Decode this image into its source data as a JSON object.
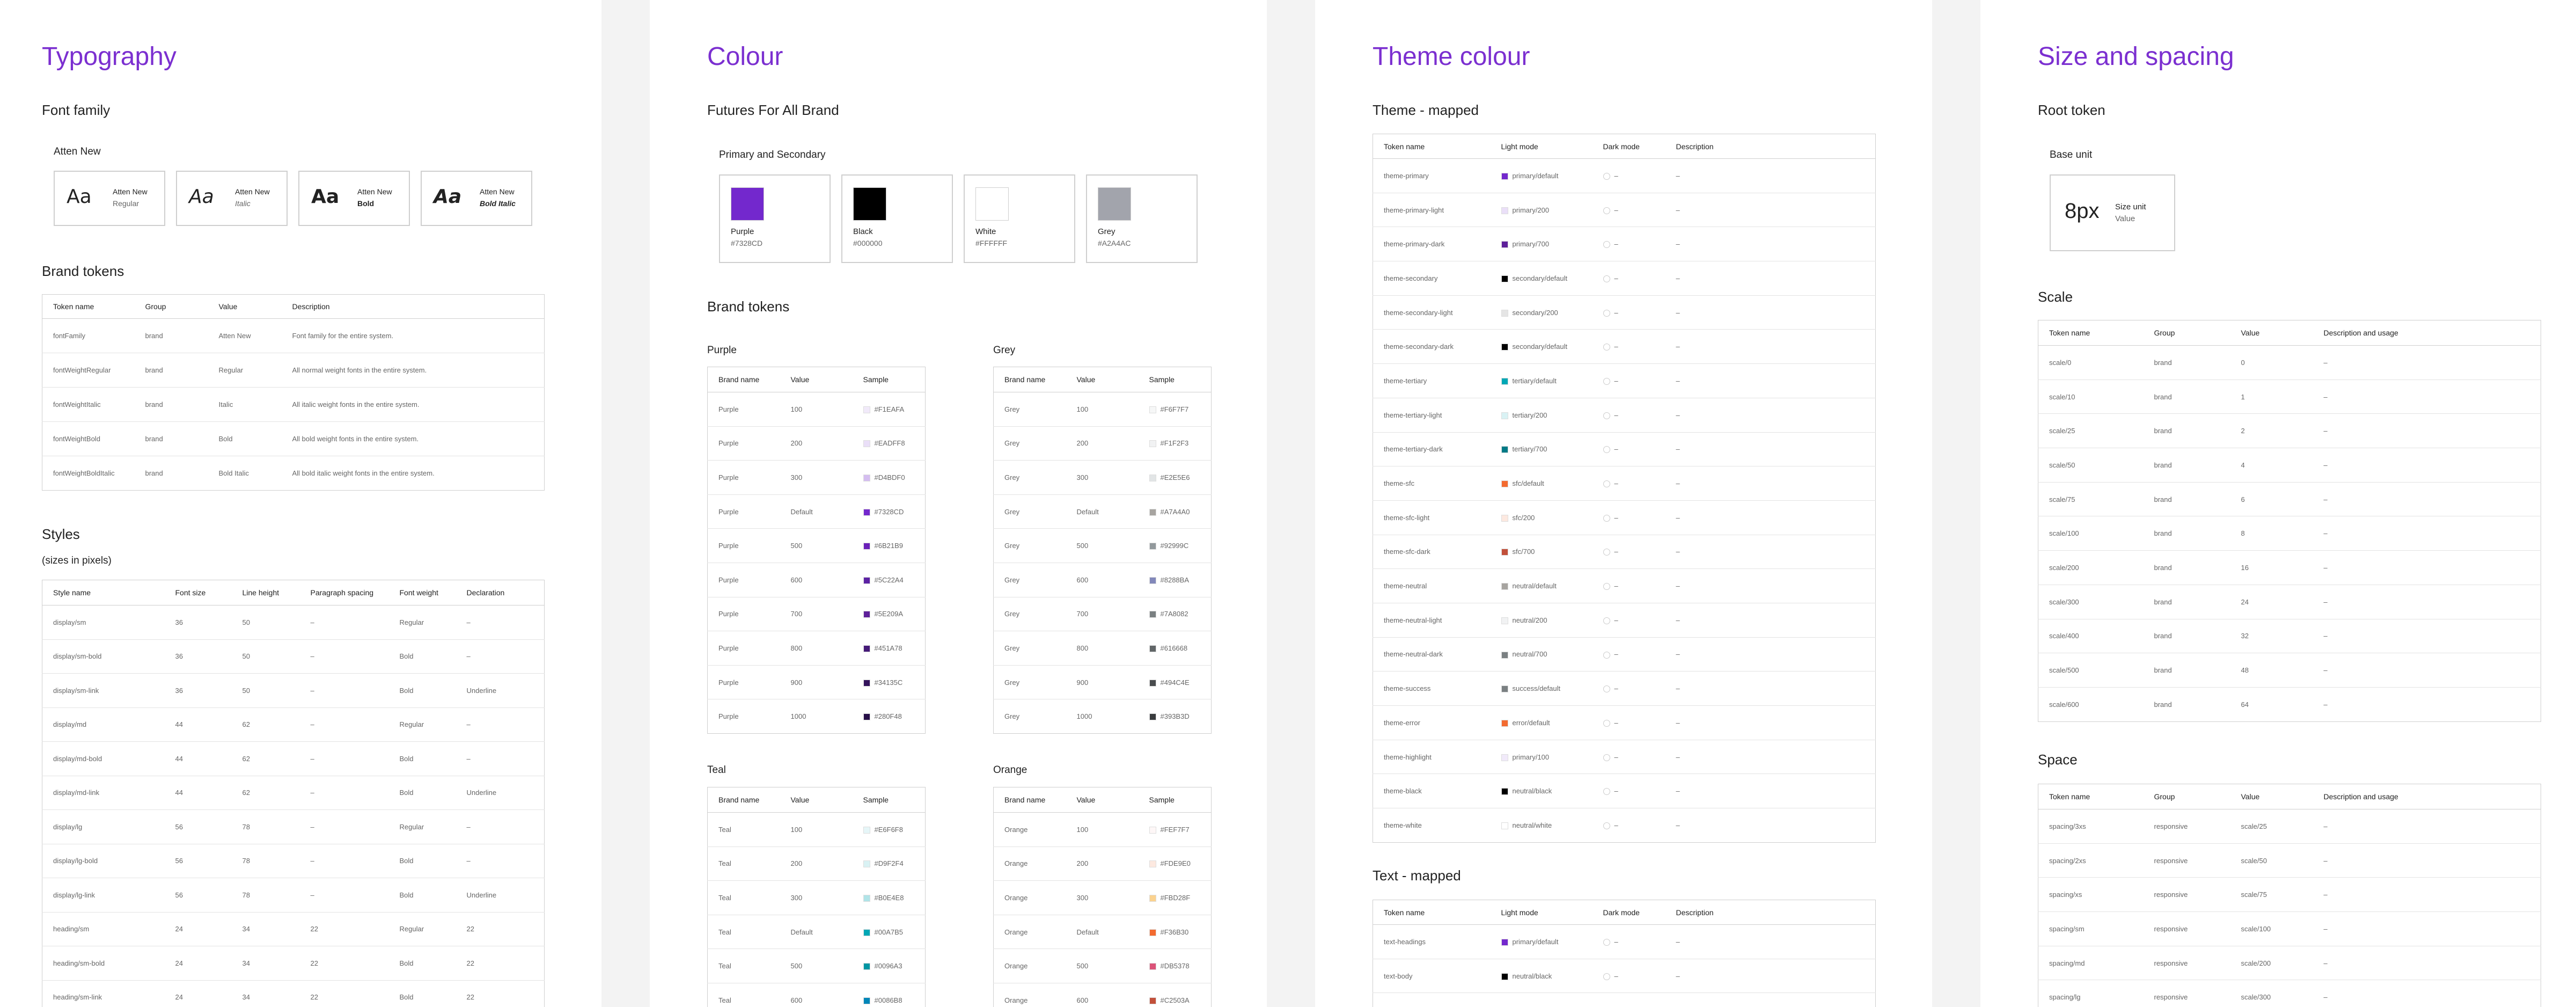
{
  "typography": {
    "title": "Typography",
    "font_family_heading": "Font family",
    "font_name": "Atten New",
    "fonts": [
      {
        "sample": "Aa",
        "name": "Atten New",
        "style": "Regular"
      },
      {
        "sample": "Aa",
        "name": "Atten New",
        "style": "Italic"
      },
      {
        "sample": "Aa",
        "name": "Atten New",
        "style": "Bold"
      },
      {
        "sample": "Aa",
        "name": "Atten New",
        "style": "Bold Italic"
      }
    ],
    "brand_tokens_heading": "Brand tokens",
    "brand_tokens_columns": [
      "Token name",
      "Group",
      "Value",
      "Description"
    ],
    "brand_tokens_rows": [
      [
        "fontFamily",
        "brand",
        "Atten New",
        "Font family for the entire system."
      ],
      [
        "fontWeightRegular",
        "brand",
        "Regular",
        "All normal weight fonts in the entire system."
      ],
      [
        "fontWeightItalic",
        "brand",
        "Italic",
        "All italic weight fonts in the entire system."
      ],
      [
        "fontWeightBold",
        "brand",
        "Bold",
        "All bold weight fonts in the entire system."
      ],
      [
        "fontWeightBoldItalic",
        "brand",
        "Bold Italic",
        "All bold italic weight fonts in the entire system."
      ]
    ],
    "styles_heading": "Styles",
    "styles_sub": "(sizes in pixels)",
    "styles_columns": [
      "Style name",
      "Font size",
      "Line height",
      "Paragraph spacing",
      "Font weight",
      "Declaration"
    ],
    "styles_rows": [
      [
        "display/sm",
        "36",
        "50",
        "–",
        "Regular",
        "–"
      ],
      [
        "display/sm-bold",
        "36",
        "50",
        "–",
        "Bold",
        "–"
      ],
      [
        "display/sm-link",
        "36",
        "50",
        "–",
        "Bold",
        "Underline"
      ],
      [
        "display/md",
        "44",
        "62",
        "–",
        "Regular",
        "–"
      ],
      [
        "display/md-bold",
        "44",
        "62",
        "–",
        "Bold",
        "–"
      ],
      [
        "display/md-link",
        "44",
        "62",
        "–",
        "Bold",
        "Underline"
      ],
      [
        "display/lg",
        "56",
        "78",
        "–",
        "Regular",
        "–"
      ],
      [
        "display/lg-bold",
        "56",
        "78",
        "–",
        "Bold",
        "–"
      ],
      [
        "display/lg-link",
        "56",
        "78",
        "–",
        "Bold",
        "Underline"
      ],
      [
        "heading/sm",
        "24",
        "34",
        "22",
        "Regular",
        "22"
      ],
      [
        "heading/sm-bold",
        "24",
        "34",
        "22",
        "Bold",
        "22"
      ],
      [
        "heading/sm-link",
        "24",
        "34",
        "22",
        "Bold",
        "22"
      ]
    ]
  },
  "colour": {
    "title": "Colour",
    "subtitle": "Futures For All Brand",
    "primary_heading": "Primary and Secondary",
    "primary_colours": [
      {
        "name": "Purple",
        "hex": "#7328CD",
        "color": "#7328cd"
      },
      {
        "name": "Black",
        "hex": "#000000",
        "color": "#000000"
      },
      {
        "name": "White",
        "hex": "#FFFFFF",
        "color": "#ffffff"
      },
      {
        "name": "Grey",
        "hex": "#A2A4AC",
        "color": "#a2a4ac"
      }
    ],
    "brand_tokens_heading": "Brand tokens",
    "table_columns": [
      "Brand name",
      "Value",
      "Sample"
    ],
    "purple": {
      "label": "Purple",
      "rows": [
        [
          "Purple",
          "100",
          "#F1EAFA",
          "#f1eafa"
        ],
        [
          "Purple",
          "200",
          "#EADFF8",
          "#eadff8"
        ],
        [
          "Purple",
          "300",
          "#D4BDF0",
          "#d4bdf0"
        ],
        [
          "Purple",
          "Default",
          "#7328CD",
          "#7328cd"
        ],
        [
          "Purple",
          "500",
          "#6B21B9",
          "#6b21b9"
        ],
        [
          "Purple",
          "600",
          "#5C22A4",
          "#5c22a4"
        ],
        [
          "Purple",
          "700",
          "#5E209A",
          "#5e209a"
        ],
        [
          "Purple",
          "800",
          "#451A78",
          "#451a78"
        ],
        [
          "Purple",
          "900",
          "#34135C",
          "#34135c"
        ],
        [
          "Purple",
          "1000",
          "#280F48",
          "#280f48"
        ]
      ]
    },
    "grey": {
      "label": "Grey",
      "rows": [
        [
          "Grey",
          "100",
          "#F6F7F7",
          "#f6f7f7"
        ],
        [
          "Grey",
          "200",
          "#F1F2F3",
          "#f1f2f3"
        ],
        [
          "Grey",
          "300",
          "#E2E5E6",
          "#e2e5e6"
        ],
        [
          "Grey",
          "Default",
          "#A7A4A0",
          "#a7a4a0"
        ],
        [
          "Grey",
          "500",
          "#92999C",
          "#92999c"
        ],
        [
          "Grey",
          "600",
          "#8288BA",
          "#8288ba"
        ],
        [
          "Grey",
          "700",
          "#7A8082",
          "#7a8082"
        ],
        [
          "Grey",
          "800",
          "#616668",
          "#616668"
        ],
        [
          "Grey",
          "900",
          "#494C4E",
          "#494c4e"
        ],
        [
          "Grey",
          "1000",
          "#393B3D",
          "#393b3d"
        ]
      ]
    },
    "teal": {
      "label": "Teal",
      "rows": [
        [
          "Teal",
          "100",
          "#E6F6F8",
          "#e6f6f8"
        ],
        [
          "Teal",
          "200",
          "#D9F2F4",
          "#d9f2f4"
        ],
        [
          "Teal",
          "300",
          "#B0E4E8",
          "#b0e4e8"
        ],
        [
          "Teal",
          "Default",
          "#00A7B5",
          "#00a7b5"
        ],
        [
          "Teal",
          "500",
          "#0096A3",
          "#0096a3"
        ],
        [
          "Teal",
          "600",
          "#0086B8",
          "#0086b8"
        ]
      ]
    },
    "orange": {
      "label": "Orange",
      "rows": [
        [
          "Orange",
          "100",
          "#FEF7F7",
          "#fef7f7"
        ],
        [
          "Orange",
          "200",
          "#FDE9E0",
          "#fde9e0"
        ],
        [
          "Orange",
          "300",
          "#FBD28F",
          "#fbd28f"
        ],
        [
          "Orange",
          "Default",
          "#F36B30",
          "#f36b30"
        ],
        [
          "Orange",
          "500",
          "#DB5378",
          "#db5378"
        ],
        [
          "Orange",
          "600",
          "#C2503A",
          "#c2503a"
        ]
      ]
    }
  },
  "theme": {
    "title": "Theme colour",
    "theme_mapped_heading": "Theme - mapped",
    "columns": [
      "Token name",
      "Light mode",
      "Dark mode",
      "Description"
    ],
    "rows": [
      [
        "theme-primary",
        "primary/default",
        "#7328cd",
        "–",
        "–"
      ],
      [
        "theme-primary-light",
        "primary/200",
        "#eadff8",
        "–",
        "–"
      ],
      [
        "theme-primary-dark",
        "primary/700",
        "#5e209a",
        "–",
        "–"
      ],
      [
        "theme-secondary",
        "secondary/default",
        "#000000",
        "–",
        "–"
      ],
      [
        "theme-secondary-light",
        "secondary/200",
        "#e5e5e5",
        "–",
        "–"
      ],
      [
        "theme-secondary-dark",
        "secondary/default",
        "#000000",
        "–",
        "–"
      ],
      [
        "theme-tertiary",
        "tertiary/default",
        "#00a7b5",
        "–",
        "–"
      ],
      [
        "theme-tertiary-light",
        "tertiary/200",
        "#d9f2f4",
        "–",
        "–"
      ],
      [
        "theme-tertiary-dark",
        "tertiary/700",
        "#007a86",
        "–",
        "–"
      ],
      [
        "theme-sfc",
        "sfc/default",
        "#f36b30",
        "–",
        "–"
      ],
      [
        "theme-sfc-light",
        "sfc/200",
        "#fde9e0",
        "–",
        "–"
      ],
      [
        "theme-sfc-dark",
        "sfc/700",
        "#c2503a",
        "–",
        "–"
      ],
      [
        "theme-neutral",
        "neutral/default",
        "#a7a4a0",
        "–",
        "–"
      ],
      [
        "theme-neutral-light",
        "neutral/200",
        "#f1f2f3",
        "–",
        "–"
      ],
      [
        "theme-neutral-dark",
        "neutral/700",
        "#7a8082",
        "–",
        "–"
      ],
      [
        "theme-success",
        "success/default",
        "#7a8082",
        "–",
        "–"
      ],
      [
        "theme-error",
        "error/default",
        "#f36b30",
        "–",
        "–"
      ],
      [
        "theme-highlight",
        "primary/100",
        "#f1eafa",
        "–",
        "–"
      ],
      [
        "theme-black",
        "neutral/black",
        "#000000",
        "–",
        "–"
      ],
      [
        "theme-white",
        "neutral/white",
        "#ffffff",
        "–",
        "–"
      ]
    ],
    "text_mapped_heading": "Text - mapped",
    "text_rows": [
      [
        "text-headings",
        "primary/default",
        "#7328cd",
        "–",
        "–"
      ],
      [
        "text-body",
        "neutral/black",
        "#000000",
        "–",
        "–"
      ],
      [
        "",
        "",
        "#ffffff",
        "",
        ""
      ]
    ]
  },
  "size": {
    "title": "Size and spacing",
    "root_token_heading": "Root token",
    "base_unit_label": "Base unit",
    "base_value": "8px",
    "base_caption": "Size unit",
    "base_caption2": "Value",
    "scale_heading": "Scale",
    "columns": [
      "Token name",
      "Group",
      "Value",
      "Description and usage"
    ],
    "scale_rows": [
      [
        "scale/0",
        "brand",
        "0",
        "–"
      ],
      [
        "scale/10",
        "brand",
        "1",
        "–"
      ],
      [
        "scale/25",
        "brand",
        "2",
        "–"
      ],
      [
        "scale/50",
        "brand",
        "4",
        "–"
      ],
      [
        "scale/75",
        "brand",
        "6",
        "–"
      ],
      [
        "scale/100",
        "brand",
        "8",
        "–"
      ],
      [
        "scale/200",
        "brand",
        "16",
        "–"
      ],
      [
        "scale/300",
        "brand",
        "24",
        "–"
      ],
      [
        "scale/400",
        "brand",
        "32",
        "–"
      ],
      [
        "scale/500",
        "brand",
        "48",
        "–"
      ],
      [
        "scale/600",
        "brand",
        "64",
        "–"
      ]
    ],
    "space_heading": "Space",
    "space_rows": [
      [
        "spacing/3xs",
        "responsive",
        "scale/25",
        "–"
      ],
      [
        "spacing/2xs",
        "responsive",
        "scale/50",
        "–"
      ],
      [
        "spacing/xs",
        "responsive",
        "scale/75",
        "–"
      ],
      [
        "spacing/sm",
        "responsive",
        "scale/100",
        "–"
      ],
      [
        "spacing/md",
        "responsive",
        "scale/200",
        "–"
      ],
      [
        "spacing/lg",
        "responsive",
        "scale/300",
        "–"
      ]
    ]
  }
}
